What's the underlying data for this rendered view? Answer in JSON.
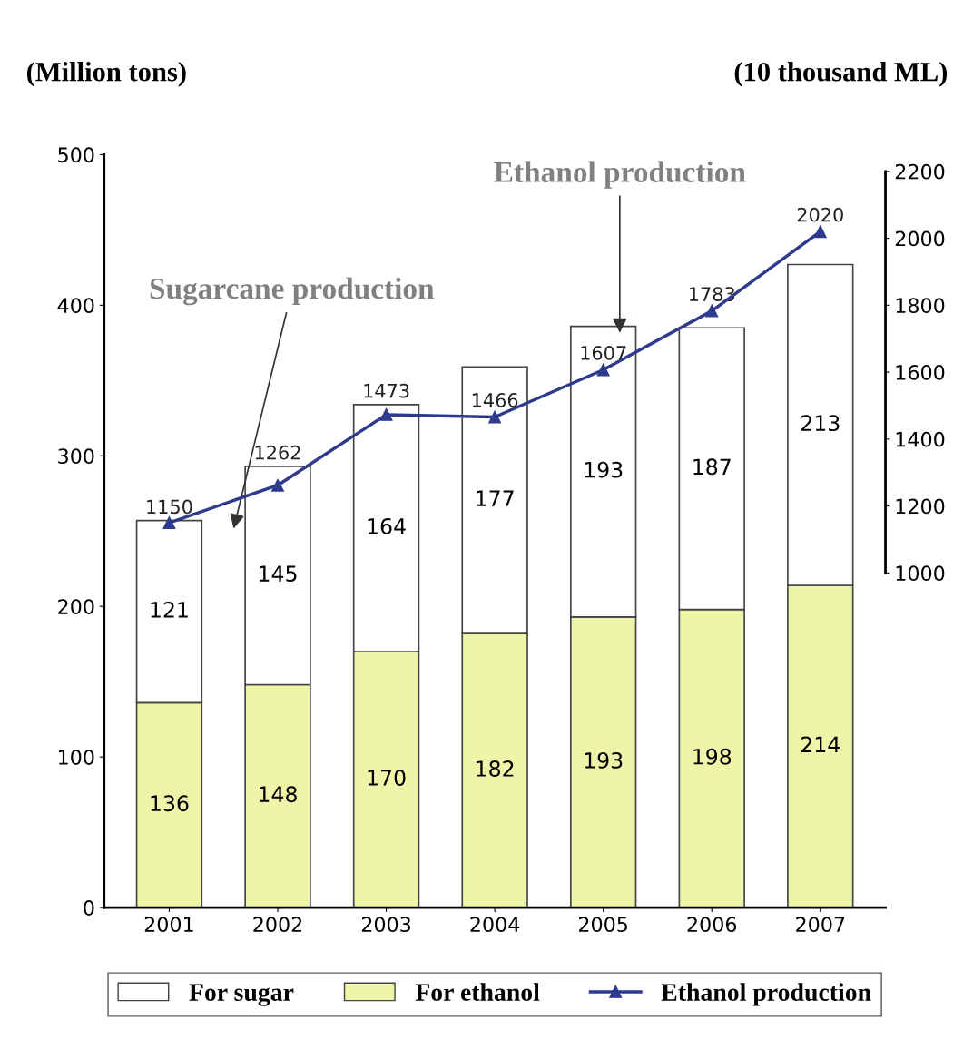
{
  "chart_data": {
    "type": "bar",
    "stacked": true,
    "categories": [
      "2001",
      "2002",
      "2003",
      "2004",
      "2005",
      "2006",
      "2007"
    ],
    "series": [
      {
        "name": "For ethanol",
        "color": "#eef5a8",
        "values": [
          136,
          148,
          170,
          182,
          193,
          198,
          214
        ]
      },
      {
        "name": "For sugar",
        "color": "#ffffff",
        "values": [
          121,
          145,
          164,
          177,
          193,
          187,
          213
        ]
      },
      {
        "name": "Ethanol production",
        "type": "line",
        "axis": "y2",
        "color": "#2e3a8c",
        "marker": "triangle",
        "line_style": "solid",
        "values": [
          1150,
          1262,
          1473,
          1466,
          1607,
          1783,
          2020
        ]
      }
    ],
    "ylabel": "(Million tons)",
    "y2label": "(10 thousand ML)",
    "ylim": [
      0,
      500
    ],
    "yticks": [
      0,
      100,
      200,
      300,
      400,
      500
    ],
    "y2lim": [
      0,
      2250
    ],
    "y2ticks": [
      1000,
      1200,
      1400,
      1600,
      1800,
      2000,
      2200
    ],
    "annotations": [
      "Sugarcane production",
      "Ethanol production"
    ],
    "data_labels": true,
    "grid": false,
    "legend": "bottom"
  }
}
